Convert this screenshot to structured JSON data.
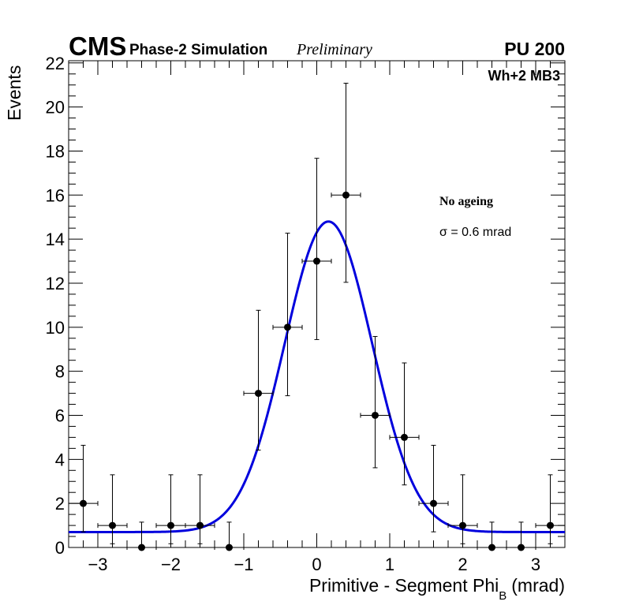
{
  "header": {
    "experiment": "CMS",
    "simulation": "Phase-2 Simulation",
    "status": "Preliminary",
    "pileup": "PU 200",
    "station": "Wh+2 MB3"
  },
  "annotations": {
    "condition": "No ageing",
    "sigma_symbol": "σ",
    "sigma_text": "= 0.6 mrad"
  },
  "chart_data": {
    "type": "scatter",
    "title": "",
    "xlabel_main": "Primitive - Segment Phi",
    "xlabel_sub": "B",
    "xlabel_unit": "(mrad)",
    "ylabel": "Events",
    "xlim": [
      -3.4,
      3.4
    ],
    "ylim": [
      0,
      22.1
    ],
    "x_ticks": [
      -3,
      -2,
      -1,
      0,
      1,
      2,
      3
    ],
    "x_tick_labels": [
      "−3",
      "−2",
      "−1",
      "0",
      "1",
      "2",
      "3"
    ],
    "y_ticks": [
      0,
      2,
      4,
      6,
      8,
      10,
      12,
      14,
      16,
      18,
      20,
      22
    ],
    "y_tick_labels": [
      "0",
      "2",
      "4",
      "6",
      "8",
      "10",
      "12",
      "14",
      "16",
      "18",
      "20",
      "22"
    ],
    "bin_half_width": 0.2,
    "points": [
      {
        "x": -3.2,
        "y": 2,
        "err_low": 1.29,
        "err_high": 2.64
      },
      {
        "x": -2.8,
        "y": 1,
        "err_low": 0.83,
        "err_high": 2.3
      },
      {
        "x": -2.4,
        "y": 0,
        "err_low": 0,
        "err_high": 1.15
      },
      {
        "x": -2.0,
        "y": 1,
        "err_low": 0.83,
        "err_high": 2.3
      },
      {
        "x": -1.6,
        "y": 1,
        "err_low": 0.83,
        "err_high": 2.3
      },
      {
        "x": -1.2,
        "y": 0,
        "err_low": 0,
        "err_high": 1.15
      },
      {
        "x": -0.8,
        "y": 7,
        "err_low": 2.58,
        "err_high": 3.77
      },
      {
        "x": -0.4,
        "y": 10,
        "err_low": 3.11,
        "err_high": 4.27
      },
      {
        "x": 0.0,
        "y": 13,
        "err_low": 3.56,
        "err_high": 4.67
      },
      {
        "x": 0.4,
        "y": 16,
        "err_low": 3.96,
        "err_high": 5.08
      },
      {
        "x": 0.8,
        "y": 6,
        "err_low": 2.38,
        "err_high": 3.58
      },
      {
        "x": 1.2,
        "y": 5,
        "err_low": 2.16,
        "err_high": 3.38
      },
      {
        "x": 1.6,
        "y": 2,
        "err_low": 1.29,
        "err_high": 2.64
      },
      {
        "x": 2.0,
        "y": 1,
        "err_low": 0.83,
        "err_high": 2.3
      },
      {
        "x": 2.4,
        "y": 0,
        "err_low": 0,
        "err_high": 1.15
      },
      {
        "x": 2.8,
        "y": 0,
        "err_low": 0,
        "err_high": 1.15
      },
      {
        "x": 3.2,
        "y": 1,
        "err_low": 0.83,
        "err_high": 2.3
      }
    ],
    "fit": {
      "function": "gaussian_plus_constant",
      "amplitude": 14.1,
      "mean": 0.16,
      "sigma": 0.6,
      "constant": 0.7,
      "color": "#0000dd"
    },
    "marker_color": "#000000"
  }
}
